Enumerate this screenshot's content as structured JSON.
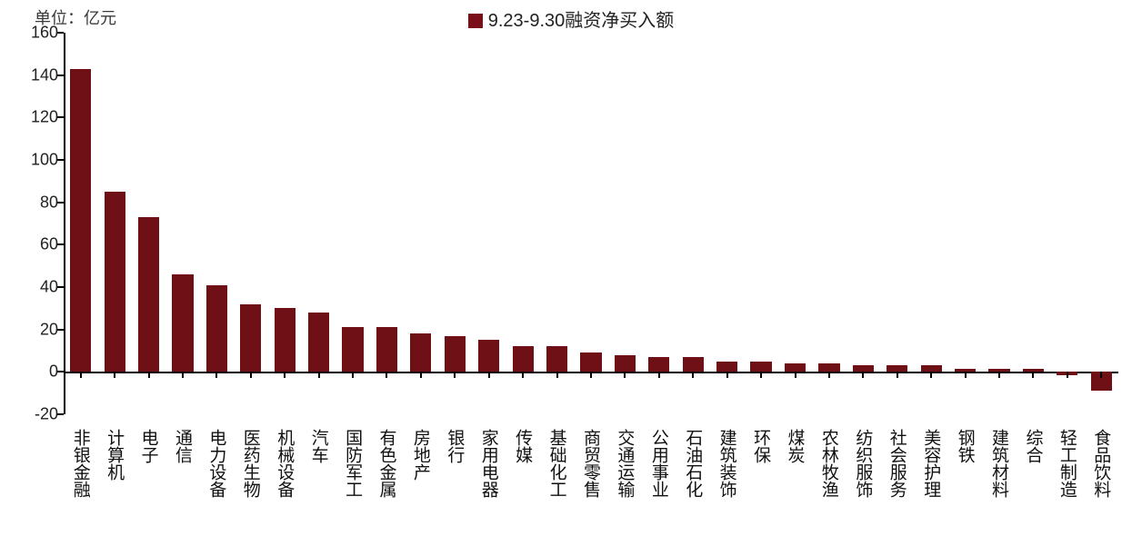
{
  "chart": {
    "type": "bar",
    "unit_label": "单位：亿元",
    "legend": {
      "label": "9.23-9.30融资净买入额",
      "swatch_color": "#7a0f17"
    },
    "y_axis": {
      "min": -20,
      "max": 160,
      "tick_step": 20,
      "tick_labels": [
        "-20",
        "0",
        "20",
        "40",
        "60",
        "80",
        "100",
        "120",
        "140",
        "160"
      ],
      "label_fontsize": 18,
      "label_color": "#222222",
      "axis_color": "#000000"
    },
    "x_axis": {
      "axis_color": "#000000",
      "label_fontsize": 19,
      "label_color": "#111111",
      "label_rotation_vertical": true
    },
    "bar_style": {
      "fill": "#6f0f16",
      "width_ratio": 0.62
    },
    "background_color": "#ffffff",
    "categories": [
      "非银金融",
      "计算机",
      "电子",
      "通信",
      "电力设备",
      "医药生物",
      "机械设备",
      "汽车",
      "国防军工",
      "有色金属",
      "房地产",
      "银行",
      "家用电器",
      "传媒",
      "基础化工",
      "商贸零售",
      "交通运输",
      "公用事业",
      "石油石化",
      "建筑装饰",
      "环保",
      "煤炭",
      "农林牧渔",
      "纺织服饰",
      "社会服务",
      "美容护理",
      "钢铁",
      "建筑材料",
      "综合",
      "轻工制造",
      "食品饮料"
    ],
    "values": [
      143,
      85,
      73,
      46,
      41,
      32,
      30,
      28,
      21,
      21,
      18,
      17,
      15,
      12,
      12,
      9,
      8,
      7,
      7,
      5,
      5,
      4,
      4,
      3,
      3,
      3,
      1.5,
      1.5,
      1.5,
      -1.5,
      -9
    ]
  }
}
